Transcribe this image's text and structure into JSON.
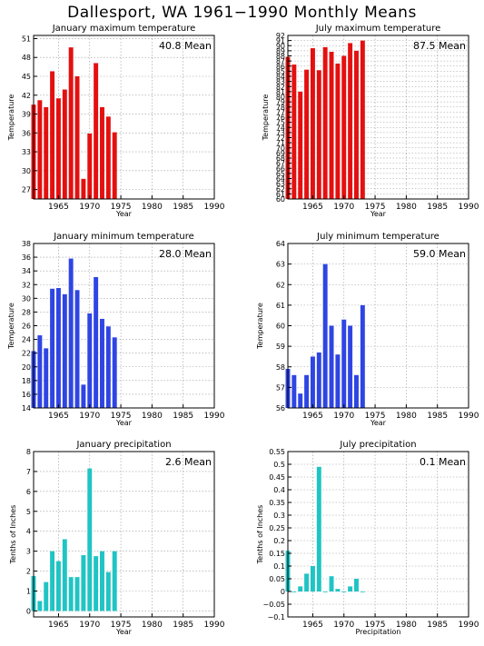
{
  "title": "Dallesport, WA     1961−1990 Monthly Means",
  "chart_data": [
    {
      "id": "jan-max",
      "type": "bar",
      "title": "January maximum temperature",
      "mean_label": "40.8 Mean",
      "xlabel": "Year",
      "ylabel": "Temperature",
      "color": "#e41010",
      "xlim": [
        1961,
        1990
      ],
      "x_ticks": [
        1965,
        1970,
        1975,
        1980,
        1985,
        1990
      ],
      "ylim": [
        25.5,
        51.5
      ],
      "y_ticks": [
        27,
        30,
        33,
        36,
        39,
        42,
        45,
        48,
        51
      ],
      "x": [
        1961,
        1962,
        1963,
        1964,
        1965,
        1966,
        1967,
        1968,
        1969,
        1970,
        1971,
        1972,
        1973,
        1974
      ],
      "values": [
        40.5,
        41.2,
        40.1,
        45.8,
        41.5,
        42.9,
        49.6,
        45.0,
        28.7,
        35.9,
        47.1,
        40.1,
        38.6,
        36.1
      ]
    },
    {
      "id": "jul-max",
      "type": "bar",
      "title": "July maximum temperature",
      "mean_label": "87.5 Mean",
      "xlabel": "Year",
      "ylabel": "Temperature",
      "color": "#e41010",
      "xlim": [
        1961,
        1990
      ],
      "x_ticks": [
        1965,
        1970,
        1975,
        1980,
        1985,
        1990
      ],
      "ylim": [
        60,
        92
      ],
      "y_ticks": [
        60,
        61,
        62,
        63,
        64,
        65,
        66,
        67,
        68,
        69,
        70,
        71,
        72,
        73,
        74,
        75,
        76,
        77,
        78,
        79,
        80,
        81,
        82,
        83,
        84,
        85,
        86,
        87,
        88,
        89,
        90,
        91,
        92
      ],
      "y_tick_labels": [
        "60",
        "61",
        "62",
        "63",
        "64",
        "65",
        "66",
        "67",
        "68",
        "69",
        "70",
        "71",
        "72",
        "73",
        "74",
        "75",
        "76",
        "77",
        "78",
        "79",
        "80",
        "81",
        "82",
        "83",
        "84",
        "85",
        "86",
        "87",
        "88",
        "89",
        "90",
        "91",
        "92"
      ],
      "x": [
        1961,
        1962,
        1963,
        1964,
        1965,
        1966,
        1967,
        1968,
        1969,
        1970,
        1971,
        1972,
        1973
      ],
      "values": [
        87.8,
        86.3,
        81.0,
        85.3,
        89.5,
        85.2,
        89.7,
        88.8,
        86.5,
        88.0,
        90.5,
        89.0,
        91.0
      ]
    },
    {
      "id": "jan-min",
      "type": "bar",
      "title": "January minimum temperature",
      "mean_label": "28.0 Mean",
      "xlabel": "Year",
      "ylabel": "Temperature",
      "color": "#2f45e3",
      "xlim": [
        1961,
        1990
      ],
      "x_ticks": [
        1965,
        1970,
        1975,
        1980,
        1985,
        1990
      ],
      "ylim": [
        14,
        38
      ],
      "y_ticks": [
        14,
        16,
        18,
        20,
        22,
        24,
        26,
        28,
        30,
        32,
        34,
        36,
        38
      ],
      "x": [
        1961,
        1962,
        1963,
        1964,
        1965,
        1966,
        1967,
        1968,
        1969,
        1970,
        1971,
        1972,
        1973,
        1974
      ],
      "values": [
        22.3,
        24.6,
        22.7,
        31.4,
        31.5,
        30.6,
        35.8,
        31.2,
        17.4,
        27.8,
        33.1,
        27.0,
        25.9,
        24.3
      ]
    },
    {
      "id": "jul-min",
      "type": "bar",
      "title": "July minimum temperature",
      "mean_label": "59.0 Mean",
      "xlabel": "Year",
      "ylabel": "Temperature",
      "color": "#2f45e3",
      "xlim": [
        1961,
        1990
      ],
      "x_ticks": [
        1965,
        1970,
        1975,
        1980,
        1985,
        1990
      ],
      "ylim": [
        56,
        64
      ],
      "y_ticks": [
        56,
        57,
        58,
        59,
        60,
        61,
        62,
        63,
        64
      ],
      "x": [
        1961,
        1962,
        1963,
        1964,
        1965,
        1966,
        1967,
        1968,
        1969,
        1970,
        1971,
        1972,
        1973
      ],
      "values": [
        57.9,
        57.6,
        56.7,
        57.6,
        58.5,
        58.7,
        63.0,
        60.0,
        58.6,
        60.3,
        60.0,
        57.6,
        61.0
      ]
    },
    {
      "id": "jan-precip",
      "type": "bar",
      "title": "January precipitation",
      "mean_label": "2.6 Mean",
      "xlabel": "Year",
      "ylabel": "Tenths of Inches",
      "color": "#20c4c4",
      "xlim": [
        1961,
        1990
      ],
      "x_ticks": [
        1965,
        1970,
        1975,
        1980,
        1985,
        1990
      ],
      "ylim": [
        -0.3,
        8
      ],
      "y_ticks": [
        0,
        1,
        2,
        3,
        4,
        5,
        6,
        7,
        8
      ],
      "x": [
        1961,
        1962,
        1963,
        1964,
        1965,
        1966,
        1967,
        1968,
        1969,
        1970,
        1971,
        1972,
        1973,
        1974
      ],
      "values": [
        1.75,
        0.5,
        1.45,
        3.0,
        2.5,
        3.6,
        1.7,
        1.7,
        2.8,
        7.15,
        2.75,
        3.0,
        1.95,
        3.0
      ]
    },
    {
      "id": "jul-precip",
      "type": "bar",
      "title": "July precipitation",
      "mean_label": "0.1 Mean",
      "xlabel": "Precipitation",
      "ylabel": "Tenths of Inches",
      "color": "#20c4c4",
      "xlim": [
        1961,
        1990
      ],
      "x_ticks": [
        1965,
        1970,
        1975,
        1980,
        1985,
        1990
      ],
      "ylim": [
        -0.1,
        0.55
      ],
      "y_ticks": [
        -0.1,
        -0.05,
        0,
        0.05,
        0.1,
        0.15,
        0.2,
        0.25,
        0.3,
        0.35,
        0.4,
        0.45,
        0.5,
        0.55
      ],
      "y_tick_labels": [
        "−0.1",
        "−0.05",
        "0",
        "0.05",
        "0.1",
        "0.15",
        "0.2",
        "0.25",
        "0.3",
        "0.35",
        "0.4",
        "0.45",
        "0.5",
        "0.55"
      ],
      "x": [
        1961,
        1962,
        1963,
        1964,
        1965,
        1966,
        1967,
        1968,
        1969,
        1970,
        1971,
        1972,
        1973
      ],
      "values": [
        0.16,
        0.0,
        0.02,
        0.07,
        0.1,
        0.49,
        0.0,
        0.06,
        0.01,
        0.0,
        0.02,
        0.05,
        0.0
      ]
    }
  ]
}
